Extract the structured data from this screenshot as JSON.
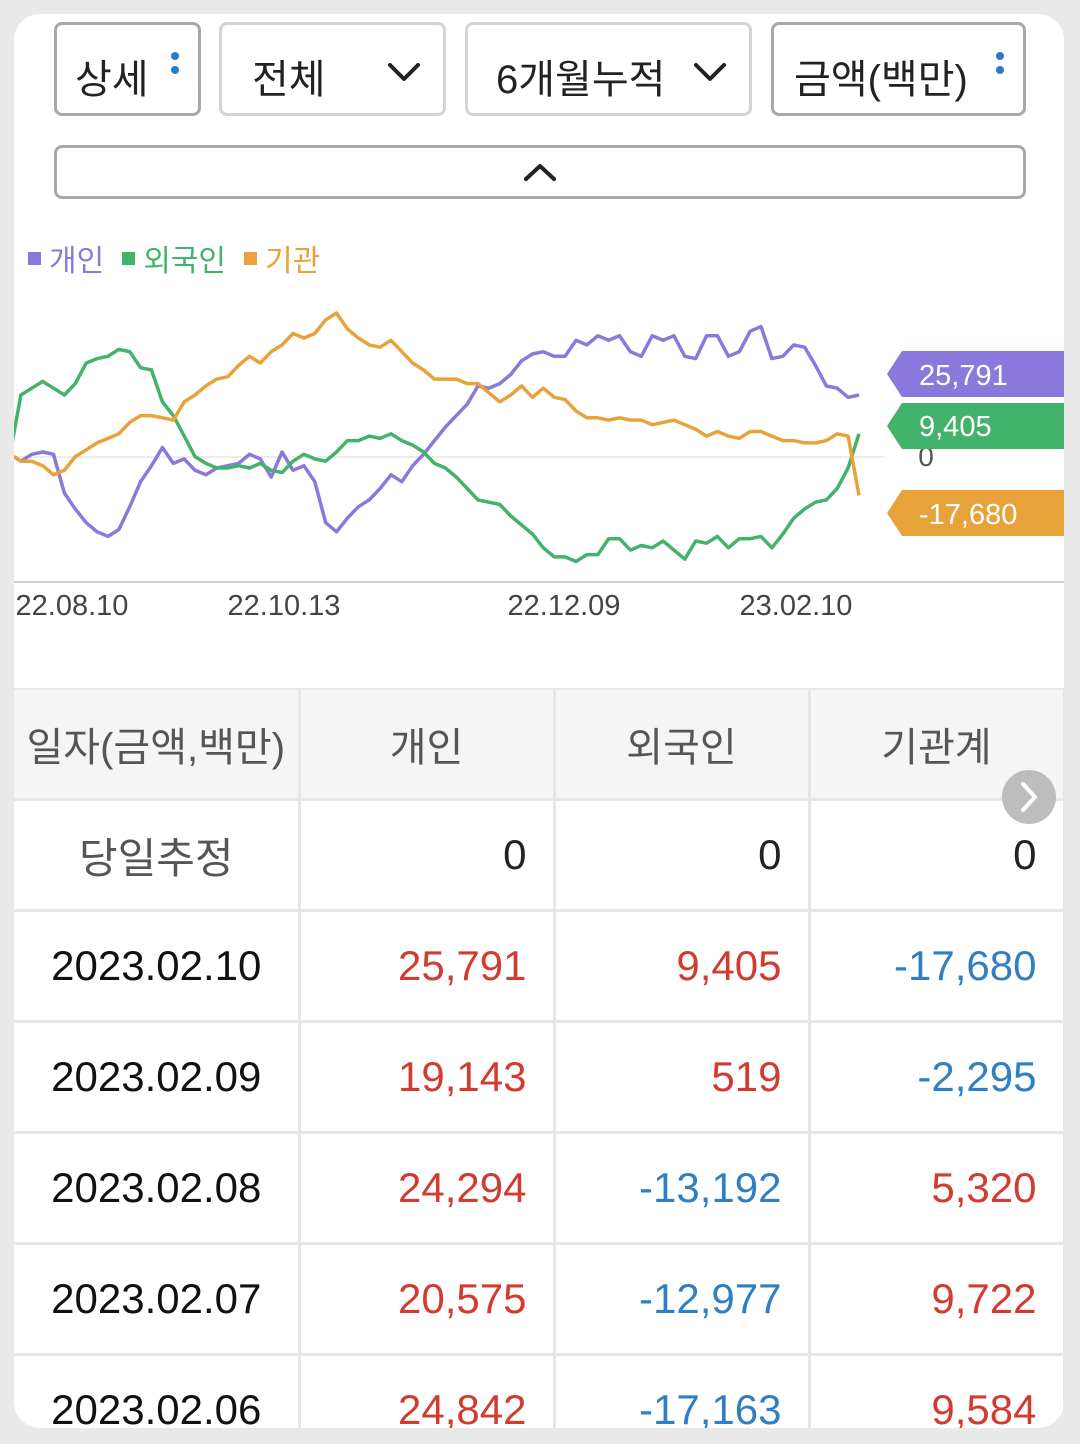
{
  "controls": {
    "detail_label": "상세",
    "scope_label": "전체",
    "period_label": "6개월누적",
    "unit_label": "금액(백만)"
  },
  "colors": {
    "individual": "#8a78dd",
    "foreign": "#43b26a",
    "institution": "#e8a23a",
    "positive": "#d23b2f",
    "negative": "#2f80c2"
  },
  "chart_data": {
    "type": "line",
    "x_ticks": [
      "22.08.10",
      "22.10.13",
      "22.12.09",
      "23.02.10"
    ],
    "series": [
      {
        "name": "개인",
        "last": "25,791",
        "values": [
          0,
          -3,
          0,
          1,
          0,
          -17,
          -24,
          -30,
          -34,
          -36,
          -33,
          -23,
          -12,
          -5,
          3,
          -4,
          -2,
          -7,
          -9,
          -6,
          -5,
          -4,
          0,
          -2,
          -10,
          1,
          -7,
          -5,
          -12,
          -30,
          -34,
          -28,
          -23,
          -20,
          -15,
          -9,
          -12,
          -5,
          0,
          6,
          12,
          17,
          22,
          30,
          29,
          31,
          35,
          41,
          44,
          45,
          43,
          43,
          50,
          48,
          52,
          50,
          52,
          45,
          43,
          52,
          50,
          52,
          43,
          42,
          52,
          52,
          43,
          45,
          54,
          56,
          42,
          43,
          48,
          47,
          39,
          30,
          29,
          25,
          26
        ]
      },
      {
        "name": "외국인",
        "last": "9,405",
        "values": [
          0,
          26,
          29,
          32,
          29,
          26,
          31,
          40,
          42,
          43,
          46,
          45,
          38,
          37,
          23,
          17,
          8,
          -1,
          -4,
          -6,
          -6,
          -5,
          -6,
          -4,
          -7,
          -8,
          -3,
          0,
          -2,
          -3,
          1,
          6,
          6,
          8,
          7,
          9,
          6,
          4,
          1,
          -4,
          -6,
          -10,
          -15,
          -20,
          -21,
          -22,
          -27,
          -31,
          -35,
          -41,
          -45,
          -45,
          -47,
          -44,
          -44,
          -37,
          -37,
          -42,
          -40,
          -41,
          -38,
          -42,
          -46,
          -38,
          -39,
          -36,
          -41,
          -37,
          -37,
          -36,
          -41,
          -35,
          -28,
          -24,
          -21,
          -20,
          -15,
          -6,
          9
        ]
      },
      {
        "name": "기관",
        "last": "-17,680",
        "values": [
          0,
          -3,
          -3,
          -5,
          -9,
          -7,
          -1,
          2,
          5,
          7,
          9,
          14,
          17,
          17,
          16,
          15,
          23,
          26,
          30,
          33,
          34,
          39,
          43,
          40,
          45,
          48,
          53,
          51,
          53,
          59,
          62,
          55,
          51,
          48,
          47,
          50,
          45,
          40,
          37,
          33,
          33,
          33,
          31,
          31,
          27,
          23,
          26,
          30,
          25,
          29,
          25,
          24,
          19,
          16,
          16,
          15,
          16,
          15,
          15,
          13,
          14,
          15,
          13,
          11,
          8,
          10,
          8,
          7,
          10,
          10,
          8,
          6,
          6,
          5,
          5,
          6,
          9,
          8,
          -18
        ]
      }
    ],
    "zero_label": "0",
    "ylim": [
      -56,
      69
    ]
  },
  "table": {
    "headers": [
      "일자(금액,백만)",
      "개인",
      "외국인",
      "기관계"
    ],
    "rows": [
      {
        "date": "당일추정",
        "individual": "0",
        "foreign": "0",
        "institution": "0"
      },
      {
        "date": "2023.02.10",
        "individual": "25,791",
        "foreign": "9,405",
        "institution": "-17,680"
      },
      {
        "date": "2023.02.09",
        "individual": "19,143",
        "foreign": "519",
        "institution": "-2,295"
      },
      {
        "date": "2023.02.08",
        "individual": "24,294",
        "foreign": "-13,192",
        "institution": "5,320"
      },
      {
        "date": "2023.02.07",
        "individual": "20,575",
        "foreign": "-12,977",
        "institution": "9,722"
      },
      {
        "date": "2023.02.06",
        "individual": "24,842",
        "foreign": "-17,163",
        "institution": "9,584"
      }
    ]
  }
}
